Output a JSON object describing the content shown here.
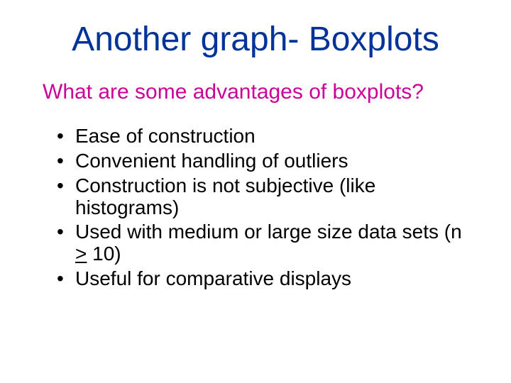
{
  "colors": {
    "title": "#003399",
    "subtitle": "#cc0099",
    "body": "#000000",
    "background": "#ffffff"
  },
  "typography": {
    "family": "Comic Sans MS",
    "title_fontsize": 48,
    "subtitle_fontsize": 30,
    "bullet_fontsize": 28
  },
  "title": "Another graph- Boxplots",
  "subtitle": "What are some advantages of boxplots?",
  "bullets": [
    "Ease of construction",
    "Convenient handling of outliers",
    "Construction is not subjective (like histograms)",
    "Used with medium or large size data sets (n > 10)",
    "Useful for comparative displays"
  ]
}
